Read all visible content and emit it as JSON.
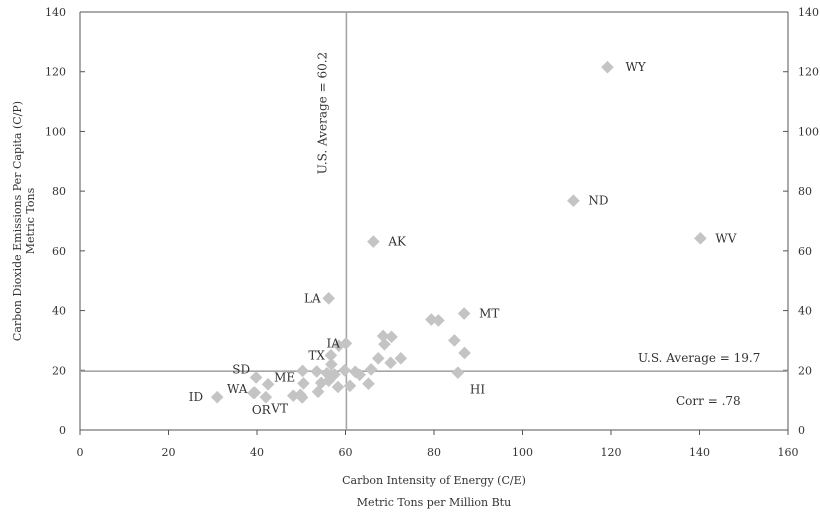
{
  "chart_data": {
    "type": "scatter",
    "xlabel": "Carbon Intensity of Energy (C/E)",
    "xlabel_units": "Metric Tons per Million Btu",
    "ylabel": "Carbon Dioxide Emissions Per Capita (C/P)",
    "ylabel_units": "Metric Tons",
    "xlim": [
      0,
      160
    ],
    "ylim": [
      0,
      140
    ],
    "x_ticks": [
      "0",
      "20",
      "40",
      "60",
      "80",
      "100",
      "120",
      "140",
      "160"
    ],
    "y_ticks": [
      "0",
      "20",
      "40",
      "60",
      "80",
      "100",
      "120",
      "140"
    ],
    "grid": false,
    "marker_color": "#c4c4c4",
    "reference_line_color": "#a6a6a6",
    "vline": {
      "x": 60.2,
      "label": "U.S. Average = 60.2"
    },
    "hline": {
      "y": 19.7,
      "label": "U.S. Average = 19.7"
    },
    "correlation_label": "Corr = .78",
    "points": [
      {
        "label": "WY",
        "x": 119.2,
        "y": 121.5
      },
      {
        "label": "ND",
        "x": 111.5,
        "y": 76.8
      },
      {
        "label": "WV",
        "x": 140.2,
        "y": 64.2
      },
      {
        "label": "AK",
        "x": 66.3,
        "y": 63.1
      },
      {
        "label": "LA",
        "x": 56.2,
        "y": 44.1
      },
      {
        "label": "MT",
        "x": 86.8,
        "y": 39.0
      },
      {
        "label": "IA",
        "x": 60.1,
        "y": 29.0
      },
      {
        "label": "TX",
        "x": 56.7,
        "y": 25.0
      },
      {
        "label": "HI",
        "x": 85.4,
        "y": 19.2
      },
      {
        "label": "SD",
        "x": 39.8,
        "y": 17.6
      },
      {
        "label": "ME",
        "x": 42.5,
        "y": 15.3
      },
      {
        "label": "WA",
        "x": 39.2,
        "y": 12.4
      },
      {
        "label": "OR",
        "x": 42.0,
        "y": 11.0
      },
      {
        "label": "VT",
        "x": 48.2,
        "y": 11.5
      },
      {
        "label": "ID",
        "x": 31.0,
        "y": 11.0
      },
      {
        "label": "",
        "x": 58.5,
        "y": 28.2
      },
      {
        "label": "",
        "x": 79.4,
        "y": 37.0
      },
      {
        "label": "",
        "x": 81.0,
        "y": 36.7
      },
      {
        "label": "",
        "x": 68.5,
        "y": 31.5
      },
      {
        "label": "",
        "x": 70.4,
        "y": 31.2
      },
      {
        "label": "",
        "x": 68.8,
        "y": 28.7
      },
      {
        "label": "",
        "x": 84.6,
        "y": 30.0
      },
      {
        "label": "",
        "x": 86.9,
        "y": 25.8
      },
      {
        "label": "",
        "x": 67.4,
        "y": 24.0
      },
      {
        "label": "",
        "x": 72.5,
        "y": 24.0
      },
      {
        "label": "",
        "x": 70.2,
        "y": 22.5
      },
      {
        "label": "",
        "x": 56.8,
        "y": 22.0
      },
      {
        "label": "",
        "x": 50.3,
        "y": 19.8
      },
      {
        "label": "",
        "x": 53.5,
        "y": 19.6
      },
      {
        "label": "",
        "x": 55.8,
        "y": 19.0
      },
      {
        "label": "",
        "x": 57.5,
        "y": 18.6
      },
      {
        "label": "",
        "x": 59.8,
        "y": 20.0
      },
      {
        "label": "",
        "x": 62.2,
        "y": 19.5
      },
      {
        "label": "",
        "x": 63.2,
        "y": 18.5
      },
      {
        "label": "",
        "x": 65.8,
        "y": 20.3
      },
      {
        "label": "",
        "x": 50.5,
        "y": 15.6
      },
      {
        "label": "",
        "x": 54.5,
        "y": 15.8
      },
      {
        "label": "",
        "x": 56.2,
        "y": 16.5
      },
      {
        "label": "",
        "x": 58.3,
        "y": 14.4
      },
      {
        "label": "",
        "x": 61.0,
        "y": 14.8
      },
      {
        "label": "",
        "x": 65.2,
        "y": 15.5
      },
      {
        "label": "",
        "x": 53.8,
        "y": 12.8
      },
      {
        "label": "",
        "x": 49.8,
        "y": 11.8
      },
      {
        "label": "",
        "x": 50.2,
        "y": 10.9
      },
      {
        "label": "",
        "x": 39.5,
        "y": 12.5
      }
    ]
  }
}
